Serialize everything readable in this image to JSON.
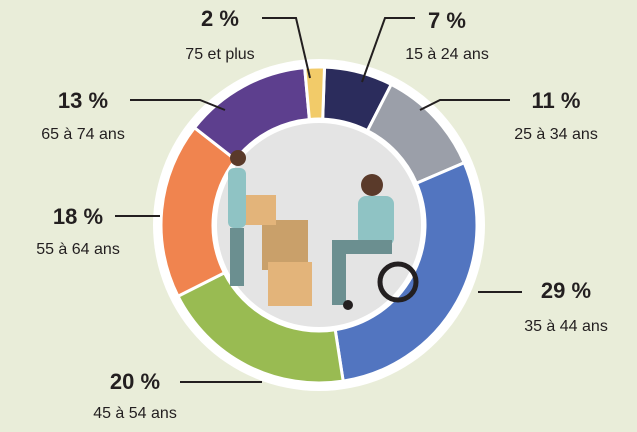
{
  "chart_data": {
    "type": "donut",
    "categories": [
      "15 à 24 ans",
      "25 à 34 ans",
      "35 à 44 ans",
      "45 à 54 ans",
      "55 à 64 ans",
      "65 à 74 ans",
      "75 et plus"
    ],
    "values": [
      7,
      11,
      29,
      20,
      18,
      13,
      2
    ],
    "value_labels": [
      "7 %",
      "11 %",
      "29 %",
      "20 %",
      "18 %",
      "13 %",
      "2 %"
    ],
    "colors": [
      "#2b2c5c",
      "#9b9fa9",
      "#5275c0",
      "#99bb52",
      "#f0844f",
      "#5d3f8e",
      "#f2cb69"
    ]
  }
}
